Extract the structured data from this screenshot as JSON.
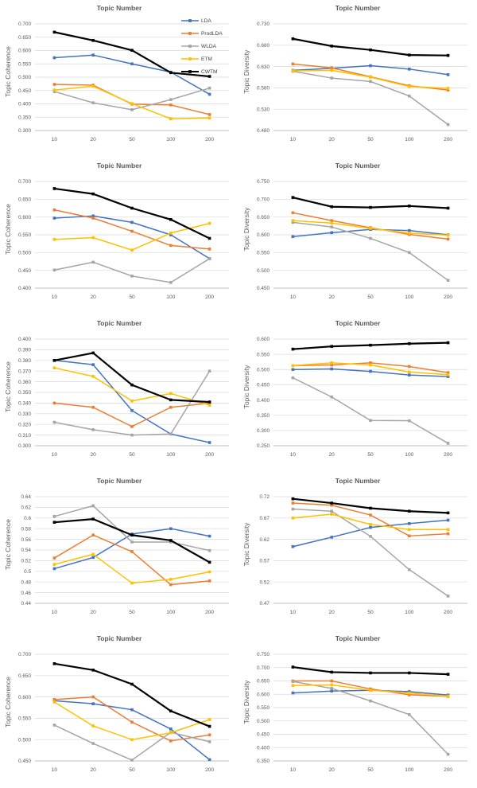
{
  "page": {
    "description": "Figure: topic model comparison line charts"
  },
  "legend": {
    "position": "top-right-of-first-chart",
    "entries": [
      {
        "label": "LDA",
        "color": "#4472C4"
      },
      {
        "label": "ProdLDA",
        "color": "#ED7D31"
      },
      {
        "label": "WLDA",
        "color": "#A5A5A5"
      },
      {
        "label": "ETM",
        "color": "#FFC000"
      },
      {
        "label": "CWTM",
        "color": "#000000"
      }
    ]
  },
  "chart_data": [
    {
      "type": "line",
      "title": "Topic Number",
      "ylabel": "Topic Coherence",
      "categories": [
        "10",
        "20",
        "50",
        "100",
        "200"
      ],
      "ymin": 0.3,
      "ymax": 0.7,
      "ystep": 0.05,
      "tick_format": "f3",
      "grid": true,
      "legend": true,
      "series": [
        {
          "name": "LDA",
          "values": [
            0.573,
            0.583,
            0.55,
            0.519,
            0.436
          ]
        },
        {
          "name": "ProdLDA",
          "values": [
            0.473,
            0.47,
            0.399,
            0.396,
            0.36
          ]
        },
        {
          "name": "WLDA",
          "values": [
            0.446,
            0.404,
            0.378,
            0.416,
            0.459
          ]
        },
        {
          "name": "ETM",
          "values": [
            0.452,
            0.466,
            0.401,
            0.344,
            0.347
          ]
        },
        {
          "name": "CWTM",
          "values": [
            0.669,
            0.638,
            0.601,
            0.517,
            0.503
          ]
        }
      ]
    },
    {
      "type": "line",
      "title": "Topic Number",
      "ylabel": "Topic Diversity",
      "categories": [
        "10",
        "20",
        "50",
        "100",
        "200"
      ],
      "ymin": 0.48,
      "ymax": 0.73,
      "ystep": 0.05,
      "tick_format": "f3",
      "grid": true,
      "legend": false,
      "series": [
        {
          "name": "LDA",
          "values": [
            0.621,
            0.626,
            0.632,
            0.624,
            0.611
          ]
        },
        {
          "name": "ProdLDA",
          "values": [
            0.636,
            0.627,
            0.606,
            0.585,
            0.575
          ]
        },
        {
          "name": "WLDA",
          "values": [
            0.619,
            0.603,
            0.595,
            0.561,
            0.494
          ]
        },
        {
          "name": "ETM",
          "values": [
            0.62,
            0.621,
            0.605,
            0.583,
            0.579
          ]
        },
        {
          "name": "CWTM",
          "values": [
            0.695,
            0.678,
            0.669,
            0.657,
            0.656
          ]
        }
      ]
    },
    {
      "type": "line",
      "title": "Topic Number",
      "ylabel": "Topic Coherence",
      "categories": [
        "10",
        "20",
        "50",
        "100",
        "200"
      ],
      "ymin": 0.4,
      "ymax": 0.7,
      "ystep": 0.05,
      "tick_format": "f3",
      "grid": true,
      "legend": false,
      "series": [
        {
          "name": "LDA",
          "values": [
            0.597,
            0.603,
            0.585,
            0.55,
            0.483
          ]
        },
        {
          "name": "ProdLDA",
          "values": [
            0.62,
            0.597,
            0.56,
            0.52,
            0.51
          ]
        },
        {
          "name": "WLDA",
          "values": [
            0.451,
            0.473,
            0.434,
            0.416,
            0.483
          ]
        },
        {
          "name": "ETM",
          "values": [
            0.537,
            0.542,
            0.507,
            0.555,
            0.582
          ]
        },
        {
          "name": "CWTM",
          "values": [
            0.68,
            0.665,
            0.625,
            0.593,
            0.54
          ]
        }
      ]
    },
    {
      "type": "line",
      "title": "Topic Number",
      "ylabel": "Topic Diversity",
      "categories": [
        "10",
        "20",
        "50",
        "100",
        "200"
      ],
      "ymin": 0.45,
      "ymax": 0.75,
      "ystep": 0.05,
      "tick_format": "f3",
      "grid": true,
      "legend": false,
      "series": [
        {
          "name": "LDA",
          "values": [
            0.595,
            0.606,
            0.615,
            0.612,
            0.6
          ]
        },
        {
          "name": "ProdLDA",
          "values": [
            0.662,
            0.64,
            0.62,
            0.601,
            0.588
          ]
        },
        {
          "name": "WLDA",
          "values": [
            0.635,
            0.622,
            0.59,
            0.55,
            0.472
          ]
        },
        {
          "name": "ETM",
          "values": [
            0.64,
            0.633,
            0.618,
            0.605,
            0.599
          ]
        },
        {
          "name": "CWTM",
          "values": [
            0.705,
            0.679,
            0.677,
            0.681,
            0.675
          ]
        }
      ]
    },
    {
      "type": "line",
      "title": "Topic Number",
      "ylabel": "Topic Coherence",
      "categories": [
        "10",
        "20",
        "50",
        "100",
        "200"
      ],
      "ymin": 0.3,
      "ymax": 0.4,
      "ystep": 0.01,
      "tick_format": "f3",
      "grid": true,
      "legend": false,
      "series": [
        {
          "name": "LDA",
          "values": [
            0.38,
            0.376,
            0.333,
            0.311,
            0.303
          ]
        },
        {
          "name": "ProdLDA",
          "values": [
            0.34,
            0.336,
            0.318,
            0.336,
            0.34
          ]
        },
        {
          "name": "WLDA",
          "values": [
            0.322,
            0.315,
            0.31,
            0.311,
            0.37
          ]
        },
        {
          "name": "ETM",
          "values": [
            0.373,
            0.365,
            0.342,
            0.349,
            0.338
          ]
        },
        {
          "name": "CWTM",
          "values": [
            0.38,
            0.387,
            0.357,
            0.343,
            0.341
          ]
        }
      ]
    },
    {
      "type": "line",
      "title": "Topic Number",
      "ylabel": "Topic Diversity",
      "categories": [
        "10",
        "20",
        "50",
        "100",
        "200"
      ],
      "ymin": 0.25,
      "ymax": 0.6,
      "ystep": 0.05,
      "tick_format": "f3",
      "grid": true,
      "legend": false,
      "series": [
        {
          "name": "LDA",
          "values": [
            0.5,
            0.502,
            0.494,
            0.482,
            0.477
          ]
        },
        {
          "name": "ProdLDA",
          "values": [
            0.513,
            0.515,
            0.522,
            0.51,
            0.49
          ]
        },
        {
          "name": "WLDA",
          "values": [
            0.473,
            0.41,
            0.333,
            0.332,
            0.258
          ]
        },
        {
          "name": "ETM",
          "values": [
            0.513,
            0.522,
            0.515,
            0.492,
            0.483
          ]
        },
        {
          "name": "CWTM",
          "values": [
            0.567,
            0.576,
            0.58,
            0.585,
            0.588
          ]
        }
      ]
    },
    {
      "type": "line",
      "title": "Topic Number",
      "ylabel": "Topic Coherence",
      "categories": [
        "10",
        "20",
        "50",
        "100",
        "200"
      ],
      "ymin": 0.44,
      "ymax": 0.64,
      "ystep": 0.02,
      "tick_format": "g2",
      "grid": true,
      "legend": false,
      "series": [
        {
          "name": "LDA",
          "values": [
            0.505,
            0.526,
            0.57,
            0.58,
            0.566
          ]
        },
        {
          "name": "ProdLDA",
          "values": [
            0.525,
            0.568,
            0.537,
            0.475,
            0.482
          ]
        },
        {
          "name": "WLDA",
          "values": [
            0.603,
            0.623,
            0.555,
            0.555,
            0.539
          ]
        },
        {
          "name": "ETM",
          "values": [
            0.513,
            0.532,
            0.478,
            0.485,
            0.499
          ]
        },
        {
          "name": "CWTM",
          "values": [
            0.592,
            0.598,
            0.568,
            0.558,
            0.517
          ]
        }
      ]
    },
    {
      "type": "line",
      "title": "Topic Number",
      "ylabel": "Topic Diversity",
      "categories": [
        "10",
        "20",
        "50",
        "100",
        "200"
      ],
      "ymin": 0.47,
      "ymax": 0.72,
      "ystep": 0.05,
      "tick_format": "f2",
      "grid": true,
      "legend": false,
      "series": [
        {
          "name": "LDA",
          "values": [
            0.603,
            0.625,
            0.648,
            0.657,
            0.665
          ]
        },
        {
          "name": "ProdLDA",
          "values": [
            0.705,
            0.7,
            0.677,
            0.628,
            0.633
          ]
        },
        {
          "name": "WLDA",
          "values": [
            0.691,
            0.686,
            0.627,
            0.549,
            0.487
          ]
        },
        {
          "name": "ETM",
          "values": [
            0.67,
            0.679,
            0.655,
            0.643,
            0.643
          ]
        },
        {
          "name": "CWTM",
          "values": [
            0.715,
            0.705,
            0.693,
            0.686,
            0.682
          ]
        }
      ]
    },
    {
      "type": "line",
      "title": "Topic Number",
      "ylabel": "Topic Coherence",
      "categories": [
        "10",
        "20",
        "50",
        "100",
        "200"
      ],
      "ymin": 0.45,
      "ymax": 0.7,
      "ystep": 0.05,
      "tick_format": "f3",
      "grid": true,
      "legend": false,
      "series": [
        {
          "name": "LDA",
          "values": [
            0.591,
            0.584,
            0.57,
            0.525,
            0.453
          ]
        },
        {
          "name": "ProdLDA",
          "values": [
            0.594,
            0.6,
            0.541,
            0.497,
            0.511
          ]
        },
        {
          "name": "WLDA",
          "values": [
            0.534,
            0.491,
            0.452,
            0.517,
            0.495
          ]
        },
        {
          "name": "ETM",
          "values": [
            0.588,
            0.532,
            0.5,
            0.516,
            0.547
          ]
        },
        {
          "name": "CWTM",
          "values": [
            0.678,
            0.663,
            0.63,
            0.567,
            0.531
          ]
        }
      ]
    },
    {
      "type": "line",
      "title": "Topic Number",
      "ylabel": "Topic Diversity",
      "categories": [
        "10",
        "20",
        "50",
        "100",
        "200"
      ],
      "ymin": 0.35,
      "ymax": 0.75,
      "ystep": 0.05,
      "tick_format": "f3",
      "grid": true,
      "legend": false,
      "series": [
        {
          "name": "LDA",
          "values": [
            0.605,
            0.612,
            0.615,
            0.61,
            0.597
          ]
        },
        {
          "name": "ProdLDA",
          "values": [
            0.65,
            0.65,
            0.62,
            0.598,
            0.592
          ]
        },
        {
          "name": "WLDA",
          "values": [
            0.648,
            0.622,
            0.575,
            0.524,
            0.375
          ]
        },
        {
          "name": "ETM",
          "values": [
            0.633,
            0.635,
            0.615,
            0.605,
            0.593
          ]
        },
        {
          "name": "CWTM",
          "values": [
            0.702,
            0.683,
            0.68,
            0.68,
            0.675
          ]
        }
      ]
    }
  ]
}
